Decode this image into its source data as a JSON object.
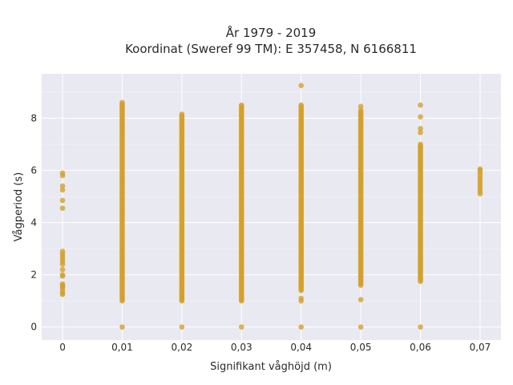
{
  "chart_data": {
    "type": "scatter",
    "title": "År 1979 - 2019",
    "subtitle": "Koordinat (Sweref 99 TM): E 357458, N 6166811",
    "xlabel": "Signifikant våghöjd (m)",
    "ylabel": "Vågperiod (s)",
    "x_ticks": [
      "0",
      "0,01",
      "0,02",
      "0,03",
      "0,04",
      "0,05",
      "0,06",
      "0,07"
    ],
    "x_tick_values": [
      0,
      0.01,
      0.02,
      0.03,
      0.04,
      0.05,
      0.06,
      0.07
    ],
    "y_ticks": [
      "0",
      "2",
      "4",
      "6",
      "8"
    ],
    "y_tick_values": [
      0,
      2,
      4,
      6,
      8
    ],
    "xlim": [
      -0.0035,
      0.0735
    ],
    "ylim": [
      -0.5,
      9.7
    ],
    "grid": true,
    "background": "#e9e9f1",
    "marker_color": "#d4a02a",
    "columns": [
      {
        "x": 0,
        "min": null,
        "max": null,
        "points": [
          1.25,
          1.3,
          1.4,
          1.5,
          1.55,
          1.6,
          1.65,
          1.95,
          2.0,
          2.2,
          2.4,
          2.5,
          2.6,
          2.7,
          2.8,
          2.9,
          4.55,
          4.85,
          5.25,
          5.4,
          5.8,
          5.9
        ]
      },
      {
        "x": 0.01,
        "min": 1.0,
        "max": 8.55,
        "points": [
          0,
          7.7,
          8.3,
          8.45,
          8.6
        ]
      },
      {
        "x": 0.02,
        "min": 1.0,
        "max": 8.15,
        "points": [
          0
        ]
      },
      {
        "x": 0.03,
        "min": 1.0,
        "max": 8.5,
        "points": [
          0
        ]
      },
      {
        "x": 0.04,
        "min": 1.4,
        "max": 8.5,
        "points": [
          0,
          1.0,
          1.1,
          9.25
        ]
      },
      {
        "x": 0.05,
        "min": 1.6,
        "max": 8.3,
        "points": [
          0,
          1.05,
          8.45
        ]
      },
      {
        "x": 0.06,
        "min": 1.75,
        "max": 7.0,
        "points": [
          0,
          7.45,
          7.6,
          8.05,
          8.5
        ]
      },
      {
        "x": 0.07,
        "min": null,
        "max": null,
        "points": [
          5.1,
          5.2,
          5.3,
          5.4,
          5.5,
          5.6,
          5.7,
          5.8,
          5.9,
          6.0,
          6.05
        ]
      }
    ]
  }
}
